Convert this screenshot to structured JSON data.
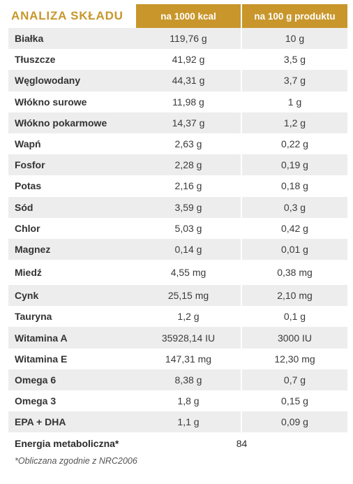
{
  "table": {
    "title": "ANALIZA SKŁADU",
    "col1_header": "na 1000 kcal",
    "col2_header": "na 100 g produktu",
    "rows": [
      {
        "name": "Białka",
        "per_1000kcal": "119,76 g",
        "per_100g": "10 g"
      },
      {
        "name": "Tłuszcze",
        "per_1000kcal": "41,92 g",
        "per_100g": "3,5 g"
      },
      {
        "name": "Węglowodany",
        "per_1000kcal": "44,31 g",
        "per_100g": "3,7 g"
      },
      {
        "name": "Włókno surowe",
        "per_1000kcal": "11,98 g",
        "per_100g": "1 g"
      },
      {
        "name": "Włókno pokarmowe",
        "per_1000kcal": "14,37 g",
        "per_100g": "1,2 g"
      },
      {
        "name": "Wapń",
        "per_1000kcal": "2,63 g",
        "per_100g": "0,22 g"
      },
      {
        "name": "Fosfor",
        "per_1000kcal": "2,28 g",
        "per_100g": "0,19 g"
      },
      {
        "name": "Potas",
        "per_1000kcal": "2,16 g",
        "per_100g": "0,18 g"
      },
      {
        "name": "Sód",
        "per_1000kcal": "3,59 g",
        "per_100g": "0,3 g"
      },
      {
        "name": "Chlor",
        "per_1000kcal": "5,03 g",
        "per_100g": "0,42 g"
      },
      {
        "name": "Magnez",
        "per_1000kcal": "0,14 g",
        "per_100g": "0,01 g"
      },
      {
        "name": "Miedź",
        "per_1000kcal": "4,55 mg",
        "per_100g": "0,38 mg"
      },
      {
        "name": "Cynk",
        "per_1000kcal": "25,15 mg",
        "per_100g": "2,10 mg"
      },
      {
        "name": "Tauryna",
        "per_1000kcal": "1,2 g",
        "per_100g": "0,1 g"
      },
      {
        "name": "Witamina A",
        "per_1000kcal": "35928,14 IU",
        "per_100g": "3000 IU"
      },
      {
        "name": "Witamina E",
        "per_1000kcal": "147,31 mg",
        "per_100g": "12,30 mg"
      },
      {
        "name": "Omega 6",
        "per_1000kcal": "8,38 g",
        "per_100g": "0,7 g"
      },
      {
        "name": "Omega 3",
        "per_1000kcal": "1,8 g",
        "per_100g": "0,15 g"
      },
      {
        "name": "EPA + DHA",
        "per_1000kcal": "1,1 g",
        "per_100g": "0,09 g"
      }
    ],
    "energy": {
      "name": "Energia metaboliczna*",
      "value": "84"
    },
    "footnote": "*Obliczana zgodnie z NRC2006"
  },
  "colors": {
    "accent": "#c8962b",
    "row_shade": "#ededed"
  }
}
